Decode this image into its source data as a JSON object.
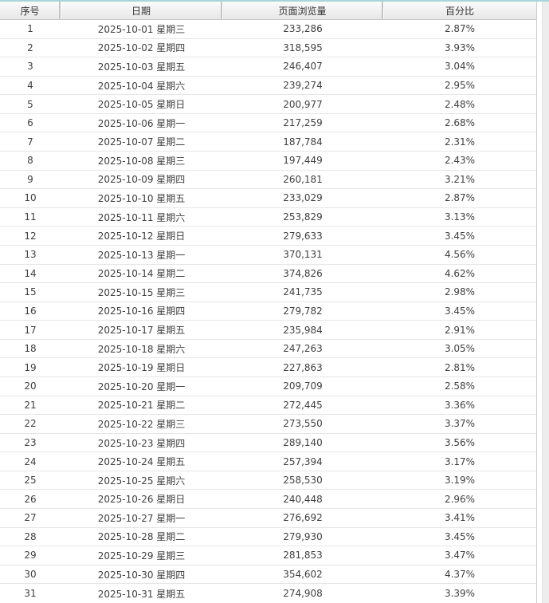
{
  "table": {
    "columns": [
      {
        "key": "index",
        "label": "序号"
      },
      {
        "key": "date",
        "label": "日期"
      },
      {
        "key": "views",
        "label": "页面浏览量"
      },
      {
        "key": "percent",
        "label": "百分比"
      }
    ],
    "rows": [
      {
        "index": "1",
        "date": "2025-10-01 星期三",
        "views": "233,286",
        "percent": "2.87%"
      },
      {
        "index": "2",
        "date": "2025-10-02 星期四",
        "views": "318,595",
        "percent": "3.93%"
      },
      {
        "index": "3",
        "date": "2025-10-03 星期五",
        "views": "246,407",
        "percent": "3.04%"
      },
      {
        "index": "4",
        "date": "2025-10-04 星期六",
        "views": "239,274",
        "percent": "2.95%"
      },
      {
        "index": "5",
        "date": "2025-10-05 星期日",
        "views": "200,977",
        "percent": "2.48%"
      },
      {
        "index": "6",
        "date": "2025-10-06 星期一",
        "views": "217,259",
        "percent": "2.68%"
      },
      {
        "index": "7",
        "date": "2025-10-07 星期二",
        "views": "187,784",
        "percent": "2.31%"
      },
      {
        "index": "8",
        "date": "2025-10-08 星期三",
        "views": "197,449",
        "percent": "2.43%"
      },
      {
        "index": "9",
        "date": "2025-10-09 星期四",
        "views": "260,181",
        "percent": "3.21%"
      },
      {
        "index": "10",
        "date": "2025-10-10 星期五",
        "views": "233,029",
        "percent": "2.87%"
      },
      {
        "index": "11",
        "date": "2025-10-11 星期六",
        "views": "253,829",
        "percent": "3.13%"
      },
      {
        "index": "12",
        "date": "2025-10-12 星期日",
        "views": "279,633",
        "percent": "3.45%"
      },
      {
        "index": "13",
        "date": "2025-10-13 星期一",
        "views": "370,131",
        "percent": "4.56%"
      },
      {
        "index": "14",
        "date": "2025-10-14 星期二",
        "views": "374,826",
        "percent": "4.62%"
      },
      {
        "index": "15",
        "date": "2025-10-15 星期三",
        "views": "241,735",
        "percent": "2.98%"
      },
      {
        "index": "16",
        "date": "2025-10-16 星期四",
        "views": "279,782",
        "percent": "3.45%"
      },
      {
        "index": "17",
        "date": "2025-10-17 星期五",
        "views": "235,984",
        "percent": "2.91%"
      },
      {
        "index": "18",
        "date": "2025-10-18 星期六",
        "views": "247,263",
        "percent": "3.05%"
      },
      {
        "index": "19",
        "date": "2025-10-19 星期日",
        "views": "227,863",
        "percent": "2.81%"
      },
      {
        "index": "20",
        "date": "2025-10-20 星期一",
        "views": "209,709",
        "percent": "2.58%"
      },
      {
        "index": "21",
        "date": "2025-10-21 星期二",
        "views": "272,445",
        "percent": "3.36%"
      },
      {
        "index": "22",
        "date": "2025-10-22 星期三",
        "views": "273,550",
        "percent": "3.37%"
      },
      {
        "index": "23",
        "date": "2025-10-23 星期四",
        "views": "289,140",
        "percent": "3.56%"
      },
      {
        "index": "24",
        "date": "2025-10-24 星期五",
        "views": "257,394",
        "percent": "3.17%"
      },
      {
        "index": "25",
        "date": "2025-10-25 星期六",
        "views": "258,530",
        "percent": "3.19%"
      },
      {
        "index": "26",
        "date": "2025-10-26 星期日",
        "views": "240,448",
        "percent": "2.96%"
      },
      {
        "index": "27",
        "date": "2025-10-27 星期一",
        "views": "276,692",
        "percent": "3.41%"
      },
      {
        "index": "28",
        "date": "2025-10-28 星期二",
        "views": "279,930",
        "percent": "3.45%"
      },
      {
        "index": "29",
        "date": "2025-10-29 星期三",
        "views": "281,853",
        "percent": "3.47%"
      },
      {
        "index": "30",
        "date": "2025-10-30 星期四",
        "views": "354,602",
        "percent": "4.37%"
      },
      {
        "index": "31",
        "date": "2025-10-31 星期五",
        "views": "274,908",
        "percent": "3.39%"
      }
    ]
  },
  "colors": {
    "top_accent": "#a8d5d9",
    "header_gradient_top": "#fcfcfc",
    "header_gradient_bottom": "#e7e7e7",
    "header_border": "#c9c9c9",
    "row_separator": "#e6e6e6",
    "text": "#404040",
    "scrollbar_track": "#ededed"
  }
}
